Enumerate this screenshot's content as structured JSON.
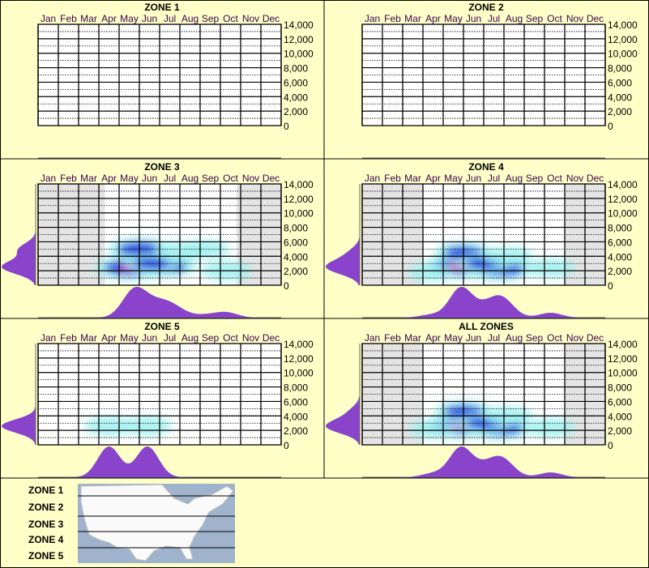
{
  "months": [
    "Jan",
    "Feb",
    "Mar",
    "Apr",
    "May",
    "Jun",
    "Jul",
    "Aug",
    "Sep",
    "Oct",
    "Nov",
    "Dec"
  ],
  "y_ticks": [
    "0",
    "2,000",
    "4,000",
    "6,000",
    "8,000",
    "10,000",
    "12,000",
    "14,000"
  ],
  "colors": {
    "background": "#ffffc8",
    "density": "#8a44cc",
    "no_data": "#e4e4e4",
    "heat_low": "#9ff0f0",
    "heat_mid": "#0a2ae0",
    "heat_high": "#ff1aa0",
    "month_label": "#3a0050"
  },
  "chart_data": [
    {
      "type": "heatmap",
      "title": "ZONE 1",
      "ylim": [
        0,
        14000
      ],
      "active_months": [
        0,
        12
      ],
      "hotspots": []
    },
    {
      "type": "heatmap",
      "title": "ZONE 2",
      "ylim": [
        0,
        14000
      ],
      "active_months": [
        0,
        12
      ],
      "hotspots": []
    },
    {
      "type": "heatmap",
      "title": "ZONE 3",
      "ylim": [
        0,
        14000
      ],
      "active_months": [
        3.3,
        9.8
      ],
      "hotspots": [
        {
          "month": 4.6,
          "elev": 2400,
          "intensity": 1.0
        },
        {
          "month": 5.0,
          "elev": 5000,
          "intensity": 0.7
        },
        {
          "month": 6.3,
          "elev": 2600,
          "intensity": 0.65
        },
        {
          "month": 5.6,
          "elev": 3000,
          "intensity": 0.45
        },
        {
          "month": 7.0,
          "elev": 4700,
          "intensity": 0.3
        },
        {
          "month": 9.3,
          "elev": 2000,
          "intensity": 0.3
        },
        {
          "month": 8.3,
          "elev": 5000,
          "intensity": 0.15
        }
      ]
    },
    {
      "type": "heatmap",
      "title": "ZONE 4",
      "ylim": [
        0,
        14000
      ],
      "active_months": [
        3,
        10
      ],
      "hotspots": [
        {
          "month": 4.8,
          "elev": 2600,
          "intensity": 1.0
        },
        {
          "month": 6.8,
          "elev": 2200,
          "intensity": 0.8
        },
        {
          "month": 5.0,
          "elev": 4500,
          "intensity": 0.55
        },
        {
          "month": 6.0,
          "elev": 3000,
          "intensity": 0.45
        },
        {
          "month": 7.2,
          "elev": 4000,
          "intensity": 0.25
        },
        {
          "month": 9.3,
          "elev": 2400,
          "intensity": 0.25
        },
        {
          "month": 3.4,
          "elev": 1800,
          "intensity": 0.15
        }
      ]
    },
    {
      "type": "heatmap",
      "title": "ZONE 5",
      "ylim": [
        0,
        14000
      ],
      "active_months": [
        0,
        12
      ],
      "hotspots": [
        {
          "month": 3.5,
          "elev": 2600,
          "intensity": 0.25
        },
        {
          "month": 5.4,
          "elev": 2600,
          "intensity": 0.25
        }
      ]
    },
    {
      "type": "heatmap",
      "title": "ALL ZONES",
      "ylim": [
        0,
        14000
      ],
      "active_months": [
        3,
        10
      ],
      "hotspots": [
        {
          "month": 4.8,
          "elev": 2600,
          "intensity": 1.0
        },
        {
          "month": 6.8,
          "elev": 2300,
          "intensity": 0.75
        },
        {
          "month": 5.0,
          "elev": 4600,
          "intensity": 0.55
        },
        {
          "month": 6.0,
          "elev": 3000,
          "intensity": 0.45
        },
        {
          "month": 7.2,
          "elev": 4000,
          "intensity": 0.25
        },
        {
          "month": 9.3,
          "elev": 2400,
          "intensity": 0.25
        },
        {
          "month": 3.5,
          "elev": 2200,
          "intensity": 0.2
        }
      ]
    }
  ],
  "legend": {
    "zones": [
      "ZONE 1",
      "ZONE 2",
      "ZONE 3",
      "ZONE 4",
      "ZONE 5"
    ]
  }
}
